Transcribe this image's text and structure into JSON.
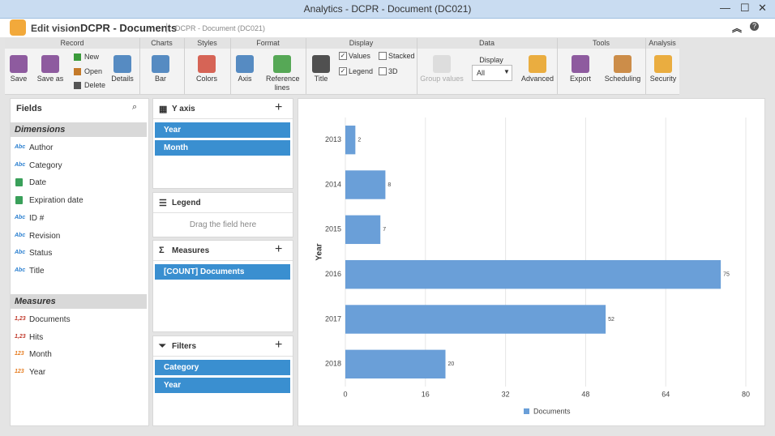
{
  "window": {
    "title": "Analytics - DCPR - Document (DC021)"
  },
  "header": {
    "back": "Edit vision",
    "name": "DCPR - Documents",
    "subtitle": "DCPR - Document (DC021)"
  },
  "ribbon": {
    "groups": [
      "Record",
      "Charts",
      "Styles",
      "Format",
      "Display",
      "Data",
      "Tools",
      "Analysis"
    ],
    "buttons": [
      "Save",
      "Save as",
      "New",
      "Open",
      "Delete",
      "Details",
      "Bar",
      "Colors",
      "Axis",
      "Reference lines",
      "Title",
      "Values",
      "Legend",
      "Stacked",
      "3D",
      "Group values",
      "Display",
      "All",
      "Advanced",
      "Export",
      "Scheduling",
      "Security"
    ]
  },
  "fields": {
    "title": "Fields",
    "dimensions_label": "Dimensions",
    "dimensions": [
      {
        "icon": "Abc",
        "name": "Author"
      },
      {
        "icon": "Abc",
        "name": "Category"
      },
      {
        "name": "Date"
      },
      {
        "name": "Expiration date"
      },
      {
        "icon": "Abc",
        "name": "ID #"
      },
      {
        "icon": "Abc",
        "name": "Revision"
      },
      {
        "icon": "Abc",
        "name": "Status"
      },
      {
        "icon": "Abc",
        "name": "Title"
      }
    ],
    "measures_label": "Measures",
    "measures": [
      {
        "icon": "1,23",
        "name": "Documents"
      },
      {
        "icon": "1,23",
        "name": "Hits"
      },
      {
        "icon": "123",
        "name": "Month"
      },
      {
        "icon": "123",
        "name": "Year"
      }
    ]
  },
  "panels": {
    "yaxis": {
      "title": "Y axis",
      "items": [
        "Year",
        "Month"
      ]
    },
    "legend": {
      "title": "Legend",
      "placeholder": "Drag the field here"
    },
    "measures": {
      "title": "Measures",
      "items": [
        "[COUNT] Documents"
      ]
    },
    "filters": {
      "title": "Filters",
      "items": [
        "Category",
        "Year"
      ]
    }
  },
  "chart_data": {
    "type": "bar",
    "orientation": "horizontal",
    "ylabel": "Year",
    "categories": [
      "2013",
      "2014",
      "2015",
      "2016",
      "2017",
      "2018"
    ],
    "series": [
      {
        "name": "Documents",
        "color": "#6a9fd8",
        "values": [
          2,
          8,
          7,
          75,
          52,
          20
        ]
      }
    ],
    "xlim": [
      0,
      80
    ],
    "xticks": [
      0,
      16,
      32,
      48,
      64,
      80
    ],
    "grid": true,
    "legend": "bottom"
  }
}
